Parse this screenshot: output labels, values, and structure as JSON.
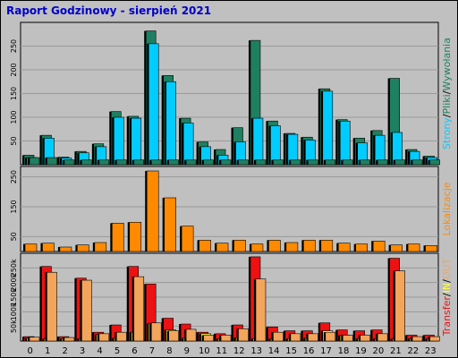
{
  "title": "Raport Godzinowy -   sierpień 2021",
  "colors": {
    "title": "#0000c8",
    "background": "#c0c0c0",
    "plot": "#c0c0c0",
    "grid": "#9a9a9a",
    "strony": "#1e8060",
    "pliki": "#00ccff",
    "wywolania": "#1e8060",
    "lokalizacje": "#ff8a00",
    "transfer": "#ee1111",
    "in": "#ffff40",
    "out": "#f3a55c"
  },
  "chart_data": [
    {
      "type": "bar",
      "panel": "hits",
      "categories": [
        "0",
        "1",
        "2",
        "3",
        "4",
        "5",
        "6",
        "7",
        "8",
        "9",
        "10",
        "11",
        "12",
        "13",
        "14",
        "15",
        "16",
        "17",
        "18",
        "19",
        "20",
        "21",
        "22",
        "23"
      ],
      "ylim": [
        0,
        300
      ],
      "y_ticks": [
        "250",
        "200",
        "150",
        "100",
        "50"
      ],
      "y_tick_values": [
        250,
        200,
        150,
        100,
        50
      ],
      "side_label": {
        "parts": [
          "Strony",
          "/",
          "Pliki",
          "/",
          "Wywołania"
        ]
      },
      "series": [
        {
          "name": "Wywołania",
          "values": [
            20,
            62,
            16,
            28,
            44,
            112,
            102,
            282,
            188,
            98,
            48,
            32,
            78,
            262,
            92,
            66,
            58,
            160,
            95,
            56,
            72,
            182,
            32,
            18
          ]
        },
        {
          "name": "Pliki",
          "values": [
            15,
            56,
            14,
            25,
            38,
            100,
            98,
            255,
            175,
            88,
            38,
            20,
            48,
            98,
            82,
            64,
            52,
            155,
            92,
            46,
            62,
            68,
            28,
            15
          ]
        },
        {
          "name": "Strony",
          "values": [
            15,
            15,
            10,
            10,
            10,
            10,
            10,
            10,
            10,
            10,
            10,
            10,
            10,
            10,
            10,
            10,
            10,
            10,
            10,
            10,
            10,
            10,
            10,
            10
          ]
        }
      ]
    },
    {
      "type": "bar",
      "panel": "lokalizacje",
      "categories": [
        "0",
        "1",
        "2",
        "3",
        "4",
        "5",
        "6",
        "7",
        "8",
        "9",
        "10",
        "11",
        "12",
        "13",
        "14",
        "15",
        "16",
        "17",
        "18",
        "19",
        "20",
        "21",
        "22",
        "23"
      ],
      "ylim": [
        0,
        285
      ],
      "y_ticks": [
        "250",
        "150",
        "50"
      ],
      "y_tick_values": [
        250,
        150,
        50
      ],
      "side_label": {
        "parts": [
          "Lokalizacje"
        ]
      },
      "series": [
        {
          "name": "Lokalizacje",
          "values": [
            25,
            28,
            15,
            22,
            30,
            95,
            98,
            270,
            180,
            85,
            38,
            28,
            38,
            25,
            38,
            30,
            38,
            38,
            28,
            25,
            35,
            22,
            25,
            20
          ]
        }
      ]
    },
    {
      "type": "bar",
      "panel": "transfer",
      "categories": [
        "0",
        "1",
        "2",
        "3",
        "4",
        "5",
        "6",
        "7",
        "8",
        "9",
        "10",
        "11",
        "12",
        "13",
        "14",
        "15",
        "16",
        "17",
        "18",
        "19",
        "20",
        "21",
        "22",
        "23"
      ],
      "ylim": [
        0,
        300000
      ],
      "y_ticks": [
        "250k",
        "200k",
        "150k",
        "100k",
        "50k"
      ],
      "y_tick_values": [
        250000,
        200000,
        150000,
        100000,
        50000
      ],
      "side_label": {
        "parts": [
          "Transfer",
          "/",
          "IN",
          "/",
          "OUT"
        ]
      },
      "series": [
        {
          "name": "Transfer",
          "values": [
            15000,
            255000,
            15000,
            215000,
            30000,
            55000,
            255000,
            195000,
            78000,
            58000,
            30000,
            25000,
            55000,
            288000,
            48000,
            35000,
            35000,
            62000,
            38000,
            35000,
            38000,
            283000,
            20000,
            20000
          ]
        },
        {
          "name": "IN",
          "values": [
            10000,
            8000,
            8000,
            8000,
            22000,
            10000,
            30000,
            60000,
            38000,
            10000,
            25000,
            8000,
            12000,
            8000,
            8000,
            8000,
            10000,
            35000,
            20000,
            8000,
            8000,
            8000,
            8000,
            8000
          ]
        },
        {
          "name": "OUT",
          "values": [
            13000,
            235000,
            12000,
            208000,
            25000,
            30000,
            220000,
            62000,
            35000,
            40000,
            20000,
            20000,
            42000,
            212000,
            30000,
            25000,
            25000,
            30000,
            20000,
            20000,
            25000,
            240000,
            15000,
            15000
          ]
        }
      ]
    }
  ]
}
